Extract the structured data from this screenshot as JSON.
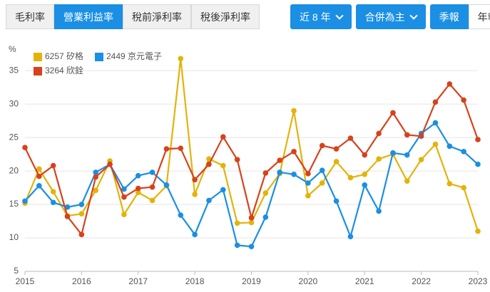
{
  "controls": {
    "tabs": [
      "毛利率",
      "營業利益率",
      "稅前淨利率",
      "稅後淨利率"
    ],
    "range": "近 8 年",
    "basis": "合併為主",
    "periods": [
      "季報",
      "年報"
    ]
  },
  "chart_data": {
    "type": "line",
    "y_unit": "%",
    "x": [
      2015,
      2015.25,
      2015.5,
      2015.75,
      2016,
      2016.25,
      2016.5,
      2016.75,
      2017,
      2017.25,
      2017.5,
      2017.75,
      2018,
      2018.25,
      2018.5,
      2018.75,
      2019,
      2019.25,
      2019.5,
      2019.75,
      2020,
      2020.25,
      2020.5,
      2020.75,
      2021,
      2021.25,
      2021.5,
      2021.75,
      2022,
      2022.25,
      2022.5,
      2022.75,
      2023
    ],
    "series": [
      {
        "name": "6257 矽格",
        "color": "#e3b30a",
        "values": [
          15.2,
          20.3,
          16.9,
          13.3,
          13.6,
          17.1,
          21.5,
          13.5,
          16.8,
          15.6,
          17.8,
          36.8,
          16.5,
          21.8,
          20.8,
          12.2,
          12.3,
          16.7,
          19.6,
          29.0,
          16.3,
          18.2,
          21.4,
          19.0,
          19.5,
          21.8,
          22.5,
          18.5,
          21.7,
          24.0,
          18.1,
          17.5,
          11.0
        ]
      },
      {
        "name": "2449 京元電子",
        "color": "#1a8fe3",
        "values": [
          15.5,
          17.8,
          15.3,
          14.6,
          15.0,
          19.8,
          21.0,
          17.3,
          19.3,
          19.8,
          17.9,
          13.4,
          10.5,
          15.6,
          17.2,
          8.9,
          8.7,
          13.1,
          19.8,
          19.5,
          18.2,
          20.1,
          15.5,
          10.2,
          17.9,
          14.0,
          22.7,
          22.4,
          25.6,
          27.2,
          23.7,
          22.9,
          21.0
        ]
      },
      {
        "name": "3264 欣銓",
        "color": "#d6421c",
        "values": [
          23.5,
          19.2,
          20.8,
          13.2,
          10.5,
          19.1,
          21.0,
          16.1,
          17.4,
          17.6,
          23.3,
          23.4,
          18.7,
          21.0,
          25.1,
          21.7,
          13.0,
          19.7,
          21.6,
          22.9,
          19.6,
          23.8,
          23.3,
          24.9,
          22.4,
          25.6,
          28.7,
          25.4,
          25.2,
          30.3,
          33.0,
          30.6,
          24.7
        ]
      }
    ],
    "xlim": [
      2015,
      2023
    ],
    "xticks": [
      2015,
      2016,
      2017,
      2018,
      2019,
      2020,
      2021,
      2022,
      2023
    ],
    "ylim": [
      5,
      38
    ],
    "yticks": [
      5,
      10,
      15,
      20,
      25,
      30,
      35
    ],
    "grid": true
  }
}
